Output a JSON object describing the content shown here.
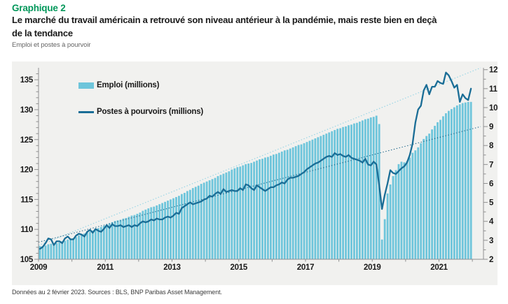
{
  "header": {
    "kicker": "Graphique 2",
    "title_line1": "Le marché du travail américain a retrouvé son niveau antérieur à la pandémie, mais reste bien en deçà",
    "title_line2": "de la tendance",
    "caption": "Emploi et postes à pourvoir"
  },
  "legend": {
    "items": [
      {
        "label": "Emploi (millions)",
        "type": "bar"
      },
      {
        "label": "Postes à pourvoirs (millions)",
        "type": "line"
      }
    ]
  },
  "footer": {
    "text": "Données au 2 février 2023. Sources : BLS, BNP Paribas Asset Management."
  },
  "colors": {
    "kicker_green": "#00975a",
    "bar_fill": "#6ec5db",
    "line_stroke": "#1a6d96",
    "bar_trend_dotted": "#8ed2e4",
    "line_trend_dotted": "#20688c",
    "panel_bg": "#f1f1ef",
    "axis": "#909090",
    "tick_text": "#1a1a1a"
  },
  "chart_data": {
    "type": "bar",
    "subtype": "monthly bars + line on secondary axis + two linear dotted trends",
    "x_axis": {
      "tick_labels": [
        "2009",
        "2011",
        "2013",
        "2015",
        "2017",
        "2019",
        "2021"
      ],
      "months_span": 160,
      "data_months": 156,
      "year_tick_interval_months": 12,
      "label_interval_months": 24
    },
    "left_axis": {
      "ticks": [
        105,
        110,
        115,
        120,
        125,
        130,
        135
      ],
      "min": 105,
      "max": 137,
      "minor_step": 1
    },
    "right_axis": {
      "ticks": [
        2,
        3,
        4,
        5,
        6,
        7,
        8,
        9,
        10,
        11,
        12
      ],
      "min": 2,
      "max": 12.1,
      "minor_step": 0.5
    },
    "series": [
      {
        "name": "Emploi (millions)",
        "type": "bar",
        "axis": "left",
        "values": [
          107.2,
          107.2,
          107.3,
          107.5,
          107.6,
          107.6,
          107.7,
          107.8,
          108.0,
          108.1,
          108.3,
          108.4,
          108.5,
          108.7,
          109.0,
          109.2,
          109.3,
          109.5,
          109.6,
          109.8,
          110.0,
          110.2,
          110.4,
          110.6,
          110.8,
          111.0,
          111.2,
          111.4,
          111.5,
          111.6,
          111.8,
          111.9,
          112.1,
          112.3,
          112.4,
          112.6,
          112.8,
          113.1,
          113.3,
          113.5,
          113.7,
          113.8,
          114.0,
          114.2,
          114.4,
          114.6,
          114.8,
          115.0,
          115.2,
          115.4,
          115.6,
          115.9,
          116.1,
          116.4,
          116.6,
          116.9,
          117.1,
          117.3,
          117.6,
          117.8,
          118.0,
          118.2,
          118.4,
          118.6,
          118.9,
          119.1,
          119.3,
          119.5,
          119.7,
          120.0,
          120.2,
          120.4,
          120.5,
          120.7,
          120.9,
          121.0,
          121.1,
          121.3,
          121.5,
          121.7,
          121.8,
          122.0,
          122.1,
          122.3,
          122.5,
          122.6,
          122.8,
          123.0,
          123.2,
          123.3,
          123.5,
          123.7,
          123.9,
          124.1,
          124.2,
          124.4,
          124.6,
          124.8,
          125.0,
          125.2,
          125.4,
          125.6,
          125.8,
          126.0,
          126.2,
          126.4,
          126.6,
          126.8,
          126.9,
          127.1,
          127.2,
          127.4,
          127.5,
          127.7,
          127.8,
          128.0,
          128.2,
          128.4,
          128.5,
          128.7,
          128.8,
          129.0,
          127.6,
          108.3,
          111.7,
          116.0,
          117.5,
          118.9,
          119.9,
          120.9,
          121.3,
          121.2,
          121.4,
          122.0,
          122.8,
          123.2,
          123.7,
          124.4,
          125.1,
          125.6,
          126.0,
          126.7,
          127.3,
          127.9,
          128.3,
          128.9,
          129.4,
          129.8,
          130.1,
          130.4,
          130.7,
          130.9,
          131.1,
          131.2,
          131.3,
          131.3
        ]
      },
      {
        "name": "Postes à pourvoirs (millions)",
        "type": "line",
        "axis": "right",
        "values": [
          2.55,
          2.65,
          2.85,
          3.1,
          3.05,
          2.75,
          2.95,
          2.95,
          2.85,
          3.1,
          3.2,
          3.05,
          3.05,
          3.25,
          3.35,
          3.3,
          3.2,
          3.45,
          3.55,
          3.4,
          3.6,
          3.5,
          3.45,
          3.6,
          3.8,
          3.65,
          3.85,
          3.75,
          3.75,
          3.8,
          3.7,
          3.75,
          3.8,
          3.7,
          3.8,
          3.75,
          3.9,
          4.0,
          3.95,
          4.0,
          4.1,
          4.05,
          4.15,
          4.1,
          4.1,
          4.2,
          4.25,
          4.2,
          4.3,
          4.45,
          4.4,
          4.7,
          4.8,
          4.9,
          5.0,
          4.9,
          4.95,
          5.0,
          5.05,
          5.15,
          5.2,
          5.35,
          5.3,
          5.45,
          5.55,
          5.45,
          5.7,
          5.55,
          5.6,
          5.65,
          5.6,
          5.6,
          5.75,
          5.65,
          5.95,
          5.9,
          5.75,
          5.65,
          5.9,
          5.8,
          5.7,
          5.6,
          5.7,
          5.8,
          5.8,
          5.9,
          5.95,
          6.05,
          6.0,
          6.2,
          6.3,
          6.3,
          6.35,
          6.4,
          6.5,
          6.6,
          6.75,
          6.85,
          6.95,
          7.05,
          7.1,
          7.2,
          7.3,
          7.4,
          7.45,
          7.4,
          7.6,
          7.5,
          7.55,
          7.45,
          7.4,
          7.5,
          7.35,
          7.3,
          7.25,
          7.2,
          7.1,
          7.3,
          7.0,
          6.95,
          7.15,
          7.0,
          5.9,
          4.65,
          5.4,
          6.0,
          6.7,
          6.55,
          6.5,
          6.65,
          6.8,
          6.9,
          7.1,
          7.5,
          8.1,
          9.2,
          9.9,
          10.1,
          10.9,
          11.2,
          10.7,
          11.1,
          11.1,
          11.4,
          11.3,
          11.25,
          11.85,
          11.7,
          11.4,
          11.05,
          11.2,
          10.3,
          10.7,
          10.5,
          10.4,
          11.0
        ]
      },
      {
        "name": "Tendance emploi",
        "type": "trend",
        "axis": "left",
        "start_value": 107.3,
        "end_value": 137.0,
        "start_month": 0,
        "end_month": 159
      },
      {
        "name": "Tendance postes à pourvoir",
        "type": "trend",
        "axis": "right",
        "start_value": 2.9,
        "end_value": 9.0,
        "start_month": 0,
        "end_month": 159
      }
    ]
  }
}
